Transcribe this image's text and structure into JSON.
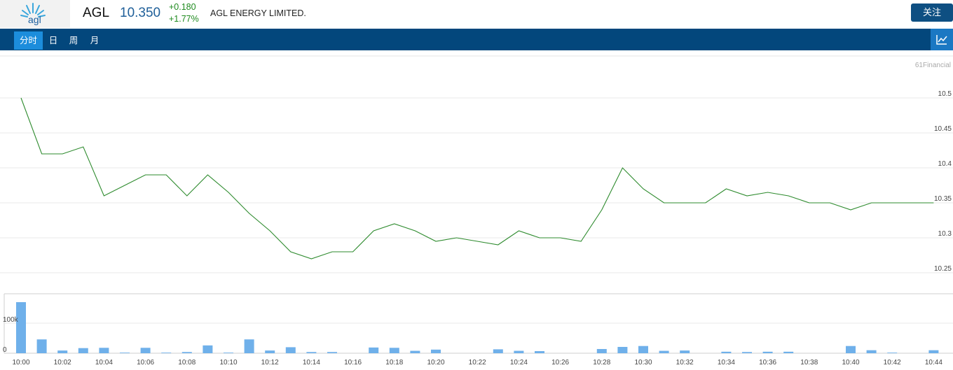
{
  "header": {
    "logo_text": "agl",
    "ticker": "AGL",
    "price": "10.350",
    "change": "+0.180",
    "change_pct": "+1.77%",
    "company_name": "AGL ENERGY LIMITED.",
    "follow_label": "关注"
  },
  "tabs": [
    {
      "label": "分时",
      "active": true
    },
    {
      "label": "日",
      "active": false
    },
    {
      "label": "周",
      "active": false
    },
    {
      "label": "月",
      "active": false
    }
  ],
  "chart_toggle_icon": "line-chart-icon",
  "watermark": "61Financial",
  "colors": {
    "header_bg": "#03477c",
    "active_tab": "#1c8ddc",
    "price": "#1f5f99",
    "up": "#1e8a1e",
    "price_line": "#2e8b2e",
    "volume_bar": "#6fb0ea"
  },
  "chart_data": {
    "type": "line",
    "price_axis": {
      "ylim": [
        10.22,
        10.56
      ],
      "ticks": [
        "10.5",
        "10.45",
        "10.4",
        "10.35",
        "10.3",
        "10.25"
      ],
      "tick_values": [
        10.5,
        10.45,
        10.4,
        10.35,
        10.3,
        10.25
      ]
    },
    "x": [
      "10:00",
      "10:01",
      "10:02",
      "10:03",
      "10:04",
      "10:05",
      "10:06",
      "10:07",
      "10:08",
      "10:09",
      "10:10",
      "10:11",
      "10:12",
      "10:13",
      "10:14",
      "10:15",
      "10:16",
      "10:17",
      "10:18",
      "10:19",
      "10:20",
      "10:21",
      "10:22",
      "10:23",
      "10:24",
      "10:25",
      "10:26",
      "10:27",
      "10:28",
      "10:29",
      "10:30",
      "10:31",
      "10:32",
      "10:33",
      "10:34",
      "10:35",
      "10:36",
      "10:37",
      "10:38",
      "10:39",
      "10:40",
      "10:41",
      "10:42",
      "10:43",
      "10:44"
    ],
    "x_tick_labels": [
      "10:00",
      "10:02",
      "10:04",
      "10:06",
      "10:08",
      "10:10",
      "10:12",
      "10:14",
      "10:16",
      "10:18",
      "10:20",
      "10:22",
      "10:24",
      "10:26",
      "10:28",
      "10:30",
      "10:32",
      "10:34",
      "10:36",
      "10:38",
      "10:40",
      "10:42",
      "10:44"
    ],
    "price": [
      10.5,
      10.42,
      10.42,
      10.43,
      10.36,
      10.375,
      10.39,
      10.39,
      10.36,
      10.39,
      10.365,
      10.335,
      10.31,
      10.28,
      10.27,
      10.28,
      10.28,
      10.31,
      10.32,
      10.31,
      10.295,
      10.3,
      10.295,
      10.29,
      10.31,
      10.3,
      10.3,
      10.295,
      10.34,
      10.4,
      10.37,
      10.35,
      10.35,
      10.35,
      10.37,
      10.36,
      10.365,
      10.36,
      10.35,
      10.35,
      10.34,
      10.35,
      10.35,
      10.35,
      10.35
    ],
    "volume_axis": {
      "ylim": [
        0,
        170000
      ],
      "ticks": [
        "100k",
        "0"
      ],
      "tick_values": [
        100000,
        0
      ]
    },
    "volume": [
      170000,
      46000,
      9000,
      17000,
      18000,
      2000,
      18000,
      2000,
      4000,
      26000,
      2000,
      46000,
      9000,
      20000,
      4000,
      4000,
      0,
      19000,
      18000,
      8000,
      12000,
      0,
      0,
      13000,
      8000,
      7000,
      0,
      0,
      14000,
      21000,
      24000,
      8000,
      9000,
      0,
      5000,
      4000,
      5000,
      5000,
      0,
      0,
      24000,
      10000,
      2000,
      0,
      10000
    ]
  }
}
